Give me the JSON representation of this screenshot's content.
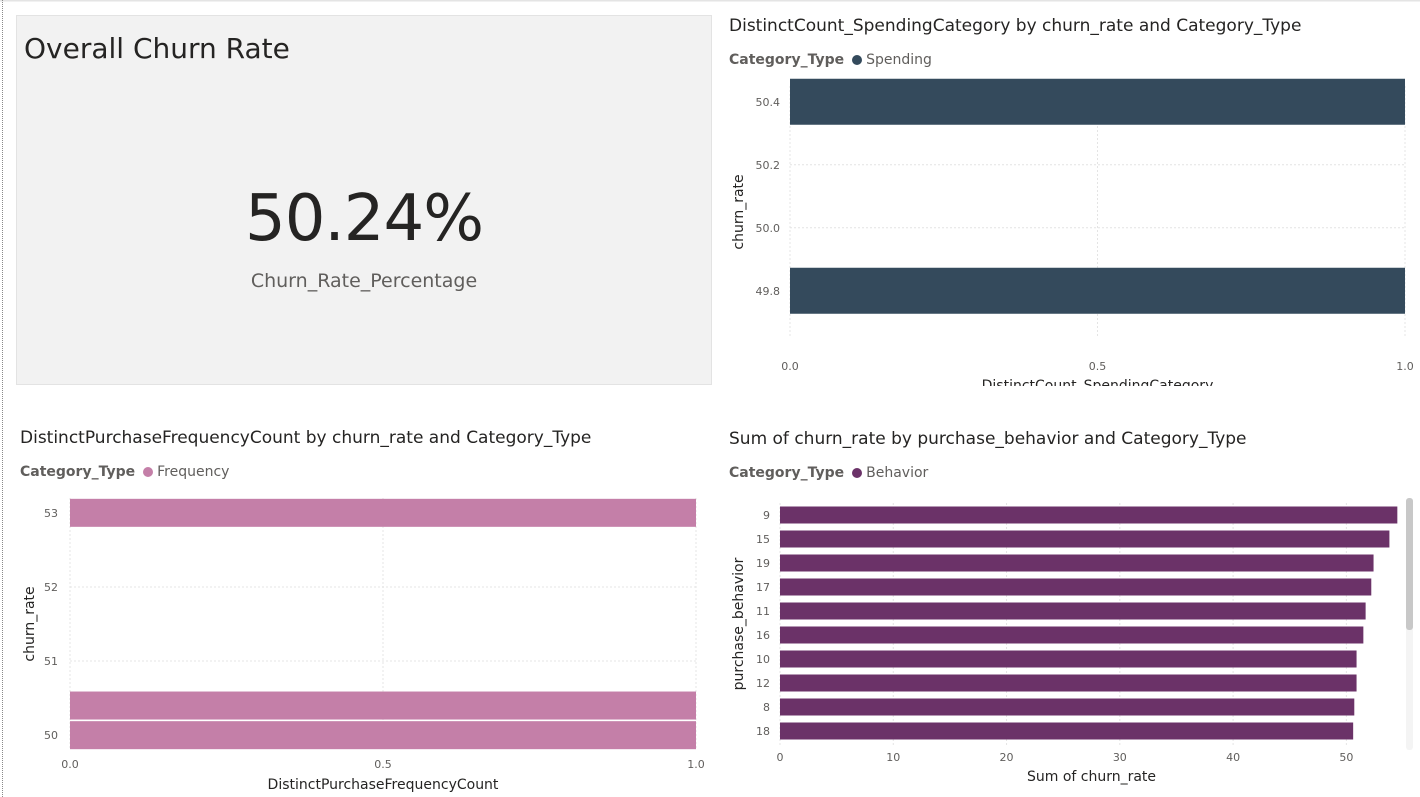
{
  "card": {
    "title": "Overall Churn Rate",
    "value": "50.24%",
    "label": "Churn_Rate_Percentage"
  },
  "chart_spending": {
    "title": "DistinctCount_SpendingCategory by churn_rate and Category_Type",
    "legend_title": "Category_Type",
    "legend_item": "Spending"
  },
  "chart_frequency": {
    "title": "DistinctPurchaseFrequencyCount by churn_rate and Category_Type",
    "legend_title": "Category_Type",
    "legend_item": "Frequency"
  },
  "chart_behavior": {
    "title": "Sum of churn_rate by purchase_behavior and Category_Type",
    "legend_title": "Category_Type",
    "legend_item": "Behavior"
  },
  "chart_data": [
    {
      "type": "bar",
      "orientation": "horizontal",
      "title": "DistinctCount_SpendingCategory by churn_rate and Category_Type",
      "xlabel": "DistinctCount_SpendingCategory",
      "ylabel": "churn_rate",
      "xlim": [
        0,
        1
      ],
      "ylim": [
        49.65,
        50.45
      ],
      "xticks": [
        "0.0",
        "0.5",
        "1.0"
      ],
      "yticks": [
        "50.4",
        "50.2",
        "50.0",
        "49.8"
      ],
      "legend_title": "Category_Type",
      "legend_position": "top-left",
      "grid": true,
      "series": [
        {
          "name": "Spending",
          "color": "#344a5c",
          "points": [
            {
              "y": 50.4,
              "x": 1.0
            },
            {
              "y": 49.8,
              "x": 1.0
            }
          ]
        }
      ]
    },
    {
      "type": "bar",
      "orientation": "horizontal",
      "title": "DistinctPurchaseFrequencyCount by churn_rate and Category_Type",
      "xlabel": "DistinctPurchaseFrequencyCount",
      "ylabel": "churn_rate",
      "xlim": [
        0,
        1
      ],
      "ylim": [
        49.8,
        53.2
      ],
      "xticks": [
        "0.0",
        "0.5",
        "1.0"
      ],
      "yticks": [
        "53",
        "52",
        "51",
        "50"
      ],
      "legend_title": "Category_Type",
      "legend_position": "top-left",
      "grid": true,
      "series": [
        {
          "name": "Frequency",
          "color": "#c47fa8",
          "points": [
            {
              "y": 53,
              "x": 1.0
            },
            {
              "y": 50.4,
              "x": 1.0
            },
            {
              "y": 50,
              "x": 1.0
            }
          ]
        }
      ]
    },
    {
      "type": "bar",
      "orientation": "horizontal",
      "title": "Sum of churn_rate by purchase_behavior and Category_Type",
      "xlabel": "Sum of churn_rate",
      "ylabel": "purchase_behavior",
      "xlim": [
        0,
        55
      ],
      "xticks": [
        "0",
        "10",
        "20",
        "30",
        "40",
        "50"
      ],
      "legend_title": "Category_Type",
      "legend_position": "top-left",
      "grid": true,
      "categories": [
        "9",
        "15",
        "19",
        "17",
        "11",
        "16",
        "10",
        "12",
        "8",
        "18"
      ],
      "series": [
        {
          "name": "Behavior",
          "color": "#6b3268",
          "values": [
            54.5,
            53.8,
            52.4,
            52.2,
            51.7,
            51.5,
            50.9,
            50.9,
            50.7,
            50.6
          ]
        }
      ]
    }
  ]
}
